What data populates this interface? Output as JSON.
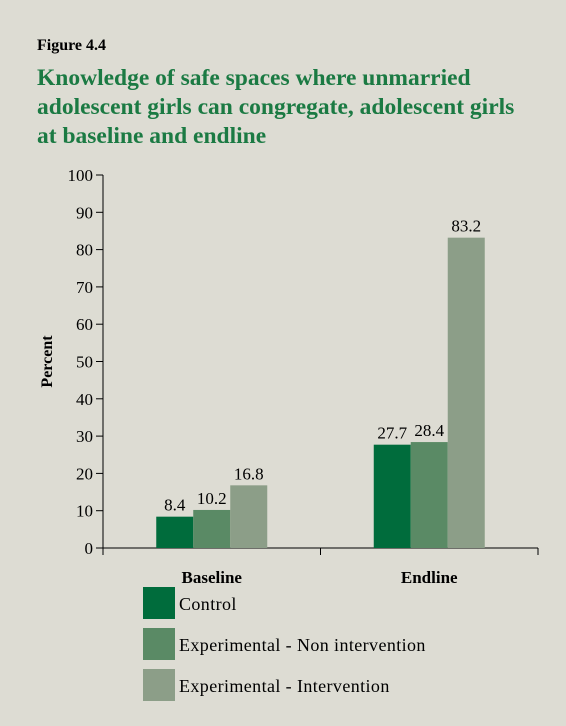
{
  "figure_label": "Figure 4.4",
  "chart_data": {
    "type": "bar",
    "title": "Knowledge of safe spaces where unmarried adolescent girls can congregate, adolescent girls at baseline and endline",
    "ylabel": "Percent",
    "xlabel": "",
    "ylim": [
      0,
      100
    ],
    "yticks": [
      0,
      10,
      20,
      30,
      40,
      50,
      60,
      70,
      80,
      90,
      100
    ],
    "grid": false,
    "legend_placement": "bottom",
    "categories": [
      "Baseline",
      "Endline"
    ],
    "series": [
      {
        "name": "Control",
        "values": [
          8.4,
          27.7
        ],
        "labels": [
          "8.4",
          "27.7"
        ],
        "color": "#006c3c"
      },
      {
        "name": "Experimental - Non intervention",
        "values": [
          10.2,
          28.4
        ],
        "labels": [
          "10.2",
          "28.4"
        ],
        "color": "#5a8a65"
      },
      {
        "name": "Experimental - Intervention",
        "values": [
          16.8,
          83.2
        ],
        "labels": [
          "16.8",
          "83.2"
        ],
        "color": "#8c9e88"
      }
    ]
  },
  "colors": {
    "background": "#dddcd3",
    "title": "#1b7a43"
  }
}
